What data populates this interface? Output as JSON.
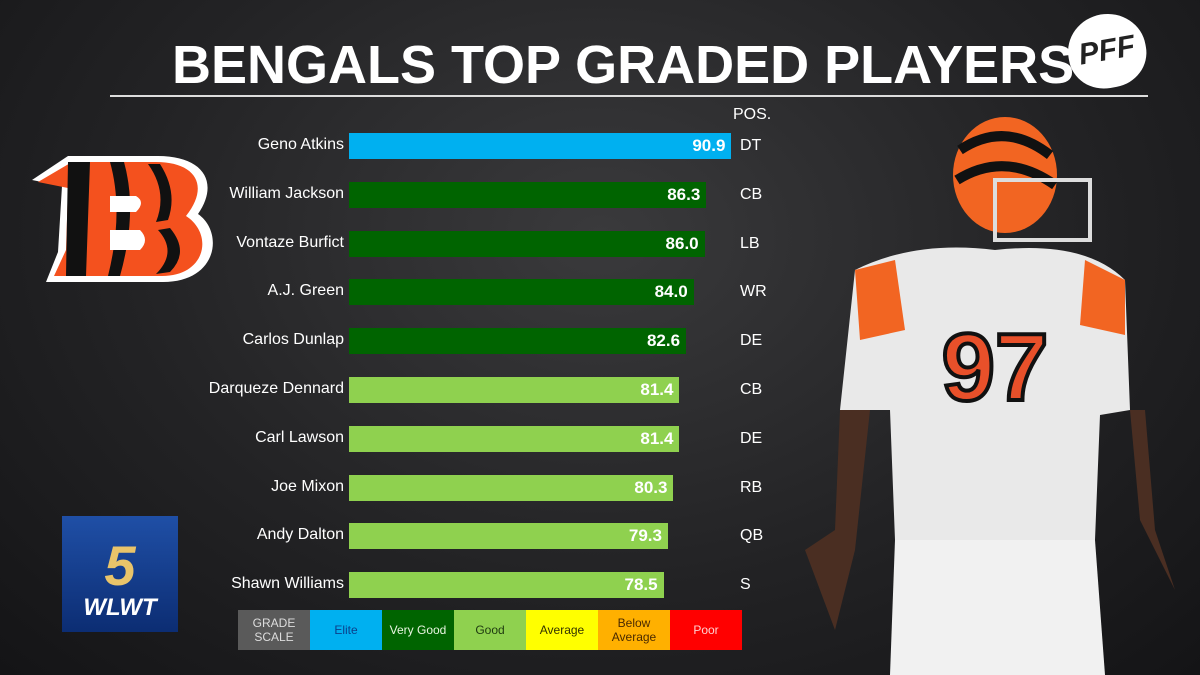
{
  "title": "BENGALS TOP GRADED PLAYERS",
  "brand": "PFF",
  "station": {
    "number": "5",
    "call": "WLWT"
  },
  "jersey_number": "97",
  "pos_header": "POS.",
  "chart_data": {
    "type": "bar",
    "orientation": "horizontal",
    "title": "BENGALS TOP GRADED PLAYERS",
    "categories": [
      "Geno Atkins",
      "William Jackson",
      "Vontaze Burfict",
      "A.J. Green",
      "Carlos Dunlap",
      "Darqueze Dennard",
      "Carl Lawson",
      "Joe Mixon",
      "Andy Dalton",
      "Shawn Williams"
    ],
    "values": [
      90.9,
      86.3,
      86.0,
      84.0,
      82.6,
      81.4,
      81.4,
      80.3,
      79.3,
      78.5
    ],
    "positions": [
      "DT",
      "CB",
      "LB",
      "WR",
      "DE",
      "CB",
      "DE",
      "RB",
      "QB",
      "S"
    ],
    "grades": [
      "Elite",
      "Very Good",
      "Very Good",
      "Very Good",
      "Very Good",
      "Good",
      "Good",
      "Good",
      "Good",
      "Good"
    ],
    "xlim": [
      21,
      91
    ]
  },
  "grade_scale": {
    "label": "GRADE SCALE",
    "items": [
      {
        "label": "Elite",
        "color": "#00b0f0",
        "text": "#0b3f8a"
      },
      {
        "label": "Very Good",
        "color": "#006400",
        "text": "#e8f5e0"
      },
      {
        "label": "Good",
        "color": "#8fd14f",
        "text": "#1e3a10"
      },
      {
        "label": "Average",
        "color": "#ffff00",
        "text": "#333300"
      },
      {
        "label": "Below Average",
        "color": "#ffb000",
        "text": "#4a2a00"
      },
      {
        "label": "Poor",
        "color": "#ff0000",
        "text": "#ffd0d0"
      }
    ]
  }
}
